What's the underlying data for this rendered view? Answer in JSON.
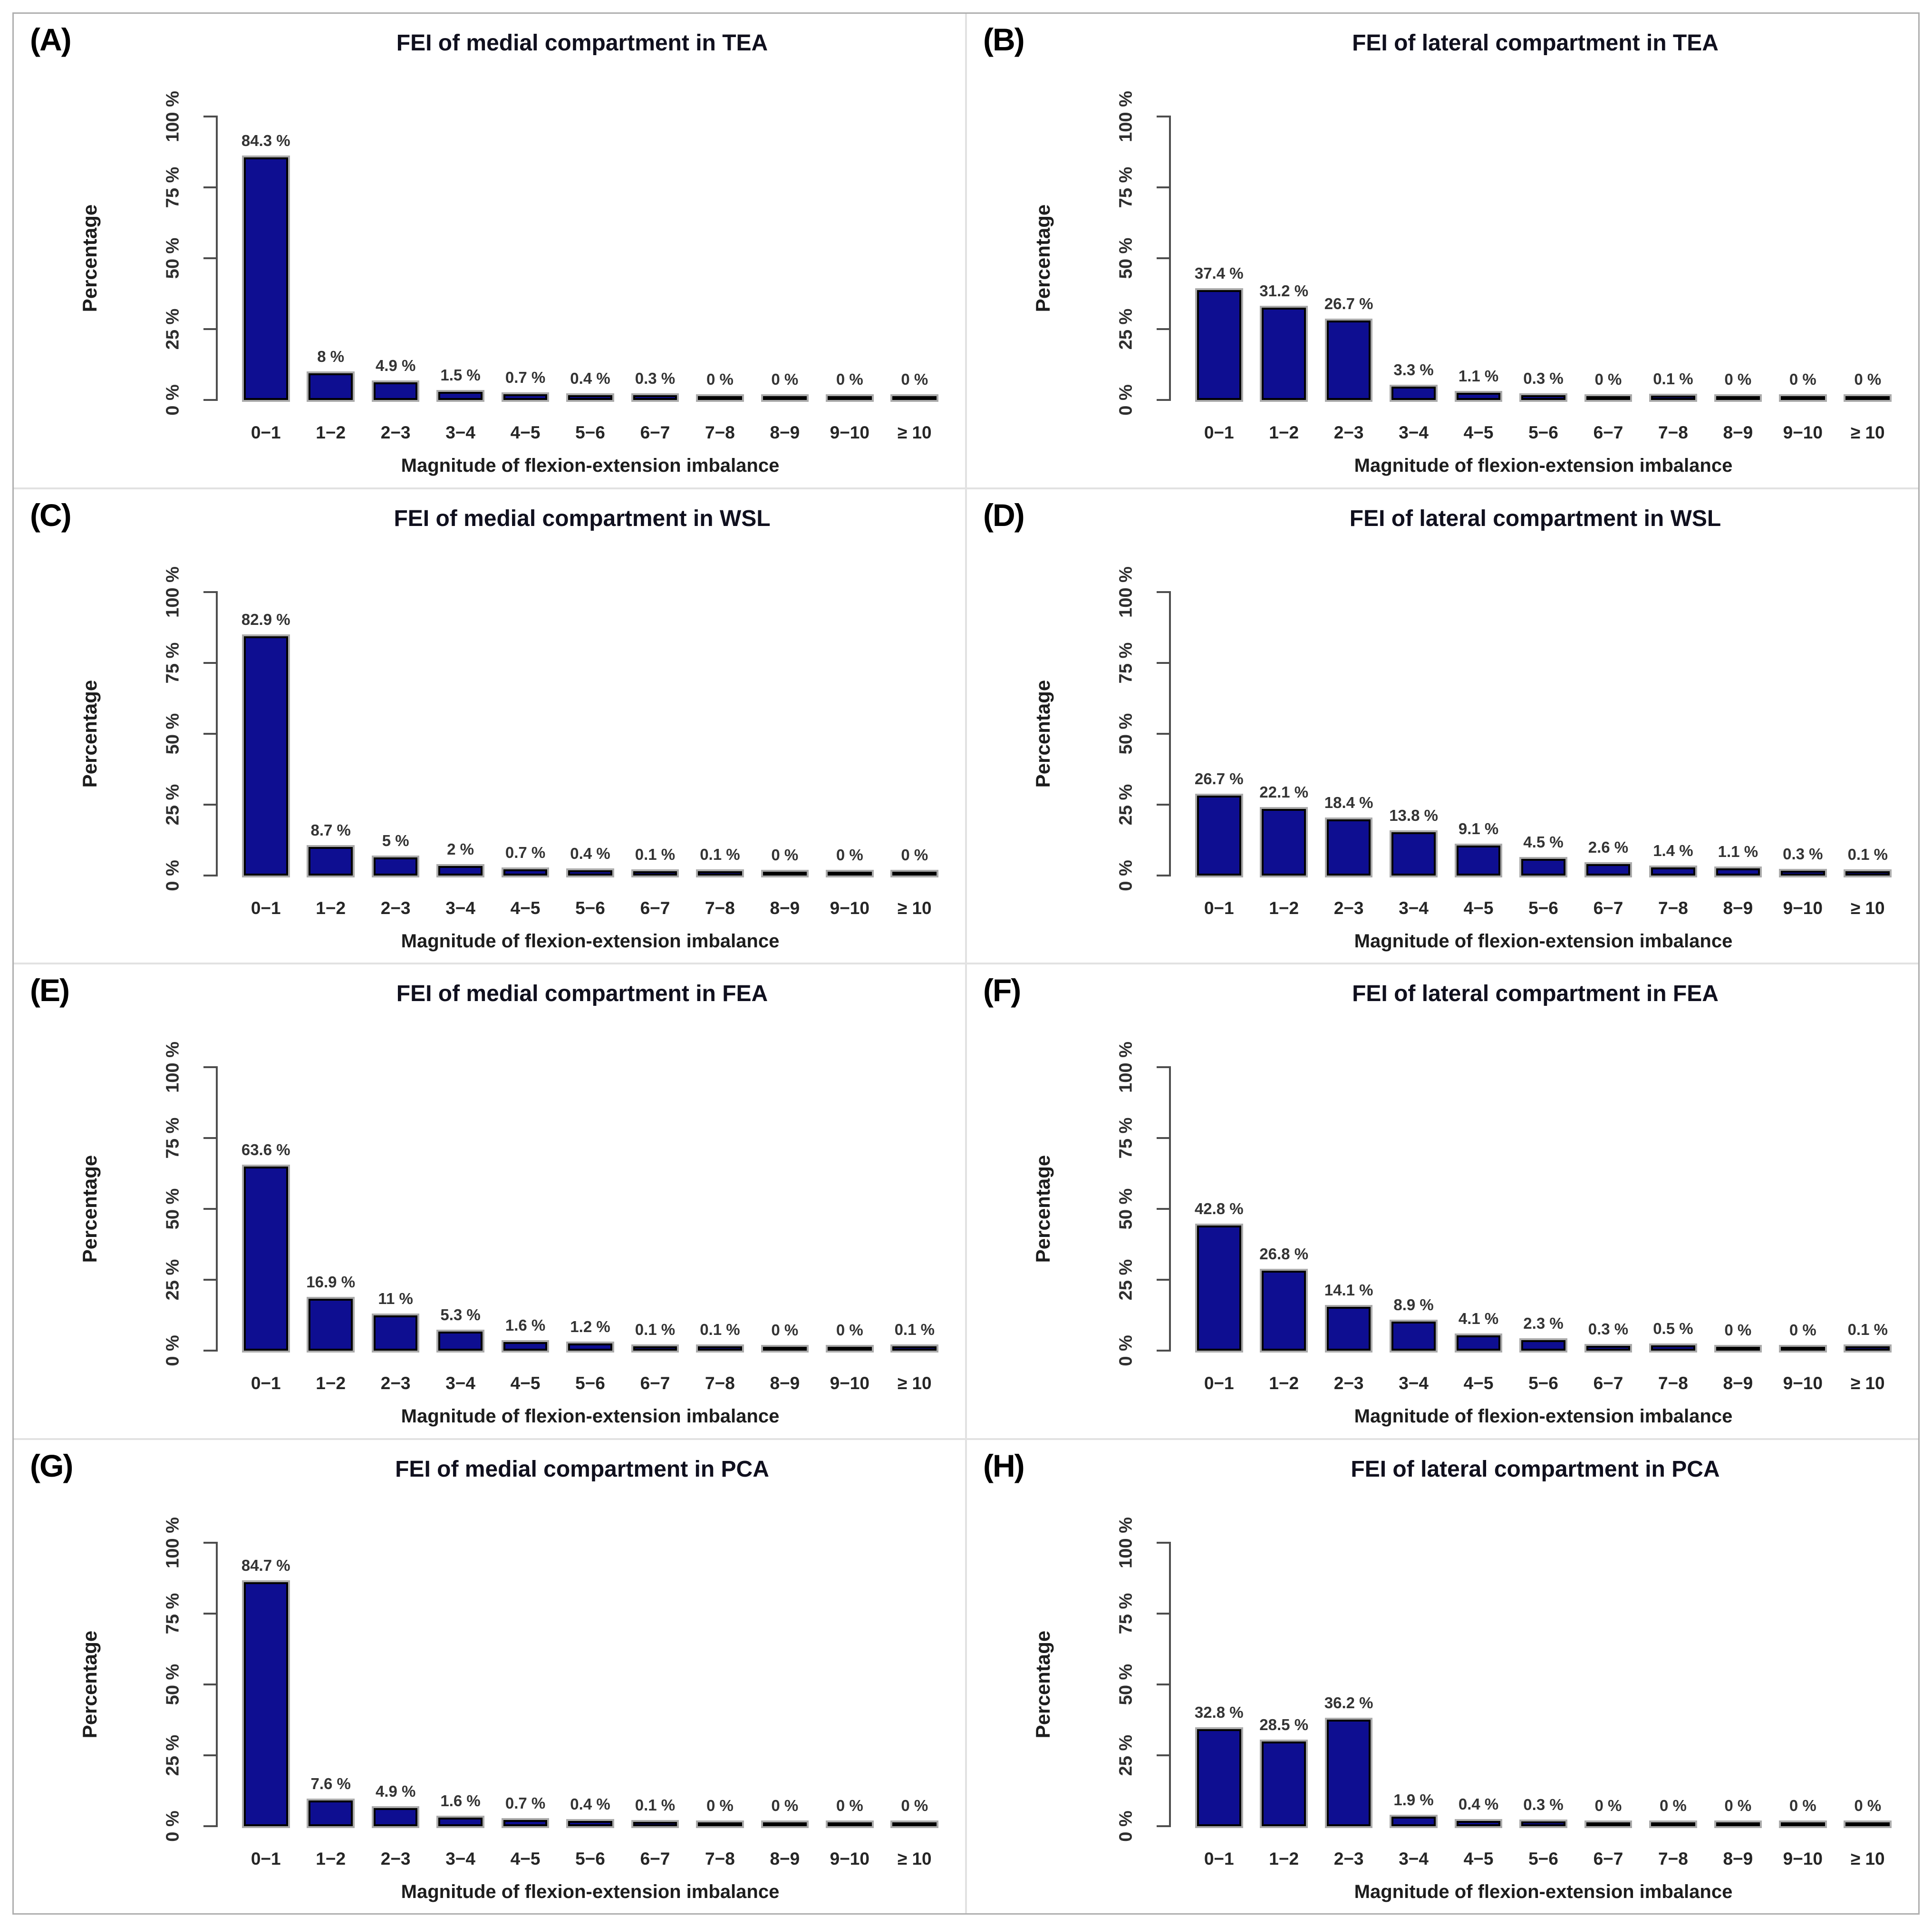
{
  "figure": {
    "xlabel": "Magnitude of flexion-extension imbalance",
    "ylabel": "Percentage",
    "categories": [
      "0−1",
      "1−2",
      "2−3",
      "3−4",
      "4−5",
      "5−6",
      "6−7",
      "7−8",
      "8−9",
      "9−10",
      "≥ 10"
    ],
    "ytick_labels": [
      "0 %",
      "25 %",
      "50 %",
      "75 %",
      "100 %"
    ],
    "ytick_values": [
      0,
      25,
      50,
      75,
      100
    ],
    "bar_color": "#0e0e91",
    "bar_border_color": "#000000",
    "bar_shadow_color": "#ababab",
    "axis_color": "#4d4d4d",
    "value_label_suffix": " %"
  },
  "chart_data": [
    {
      "panel_letter": "(A)",
      "type": "bar",
      "title": "FEI of medial compartment in TEA",
      "xlabel": "Magnitude of flexion-extension imbalance",
      "ylabel": "Percentage",
      "ylim": [
        0,
        100
      ],
      "grid": false,
      "legend": null,
      "categories": [
        "0−1",
        "1−2",
        "2−3",
        "3−4",
        "4−5",
        "5−6",
        "6−7",
        "7−8",
        "8−9",
        "9−10",
        "≥ 10"
      ],
      "values": [
        84.3,
        8,
        4.9,
        1.5,
        0.7,
        0.4,
        0.3,
        0,
        0,
        0,
        0
      ]
    },
    {
      "panel_letter": "(B)",
      "type": "bar",
      "title": "FEI of lateral compartment in TEA",
      "xlabel": "Magnitude of flexion-extension imbalance",
      "ylabel": "Percentage",
      "ylim": [
        0,
        100
      ],
      "grid": false,
      "legend": null,
      "categories": [
        "0−1",
        "1−2",
        "2−3",
        "3−4",
        "4−5",
        "5−6",
        "6−7",
        "7−8",
        "8−9",
        "9−10",
        "≥ 10"
      ],
      "values": [
        37.4,
        31.2,
        26.7,
        3.3,
        1.1,
        0.3,
        0,
        0.1,
        0,
        0,
        0
      ]
    },
    {
      "panel_letter": "(C)",
      "type": "bar",
      "title": "FEI of medial compartment in WSL",
      "xlabel": "Magnitude of flexion-extension imbalance",
      "ylabel": "Percentage",
      "ylim": [
        0,
        100
      ],
      "grid": false,
      "legend": null,
      "categories": [
        "0−1",
        "1−2",
        "2−3",
        "3−4",
        "4−5",
        "5−6",
        "6−7",
        "7−8",
        "8−9",
        "9−10",
        "≥ 10"
      ],
      "values": [
        82.9,
        8.7,
        5,
        2,
        0.7,
        0.4,
        0.1,
        0.1,
        0,
        0,
        0
      ]
    },
    {
      "panel_letter": "(D)",
      "type": "bar",
      "title": "FEI of lateral compartment in WSL",
      "xlabel": "Magnitude of flexion-extension imbalance",
      "ylabel": "Percentage",
      "ylim": [
        0,
        100
      ],
      "grid": false,
      "legend": null,
      "categories": [
        "0−1",
        "1−2",
        "2−3",
        "3−4",
        "4−5",
        "5−6",
        "6−7",
        "7−8",
        "8−9",
        "9−10",
        "≥ 10"
      ],
      "values": [
        26.7,
        22.1,
        18.4,
        13.8,
        9.1,
        4.5,
        2.6,
        1.4,
        1.1,
        0.3,
        0.1
      ]
    },
    {
      "panel_letter": "(E)",
      "type": "bar",
      "title": "FEI of medial compartment in FEA",
      "xlabel": "Magnitude of flexion-extension imbalance",
      "ylabel": "Percentage",
      "ylim": [
        0,
        100
      ],
      "grid": false,
      "legend": null,
      "categories": [
        "0−1",
        "1−2",
        "2−3",
        "3−4",
        "4−5",
        "5−6",
        "6−7",
        "7−8",
        "8−9",
        "9−10",
        "≥ 10"
      ],
      "values": [
        63.6,
        16.9,
        11,
        5.3,
        1.6,
        1.2,
        0.1,
        0.1,
        0,
        0,
        0.1
      ]
    },
    {
      "panel_letter": "(F)",
      "type": "bar",
      "title": "FEI of lateral compartment in FEA",
      "xlabel": "Magnitude of flexion-extension imbalance",
      "ylabel": "Percentage",
      "ylim": [
        0,
        100
      ],
      "grid": false,
      "legend": null,
      "categories": [
        "0−1",
        "1−2",
        "2−3",
        "3−4",
        "4−5",
        "5−6",
        "6−7",
        "7−8",
        "8−9",
        "9−10",
        "≥ 10"
      ],
      "values": [
        42.8,
        26.8,
        14.1,
        8.9,
        4.1,
        2.3,
        0.3,
        0.5,
        0,
        0,
        0.1
      ]
    },
    {
      "panel_letter": "(G)",
      "type": "bar",
      "title": "FEI of medial compartment in PCA",
      "xlabel": "Magnitude of flexion-extension imbalance",
      "ylabel": "Percentage",
      "ylim": [
        0,
        100
      ],
      "grid": false,
      "legend": null,
      "categories": [
        "0−1",
        "1−2",
        "2−3",
        "3−4",
        "4−5",
        "5−6",
        "6−7",
        "7−8",
        "8−9",
        "9−10",
        "≥ 10"
      ],
      "values": [
        84.7,
        7.6,
        4.9,
        1.6,
        0.7,
        0.4,
        0.1,
        0,
        0,
        0,
        0
      ]
    },
    {
      "panel_letter": "(H)",
      "type": "bar",
      "title": "FEI of lateral compartment in PCA",
      "xlabel": "Magnitude of flexion-extension imbalance",
      "ylabel": "Percentage",
      "ylim": [
        0,
        100
      ],
      "grid": false,
      "legend": null,
      "categories": [
        "0−1",
        "1−2",
        "2−3",
        "3−4",
        "4−5",
        "5−6",
        "6−7",
        "7−8",
        "8−9",
        "9−10",
        "≥ 10"
      ],
      "values": [
        32.8,
        28.5,
        36.2,
        1.9,
        0.4,
        0.3,
        0,
        0,
        0,
        0,
        0
      ]
    }
  ]
}
